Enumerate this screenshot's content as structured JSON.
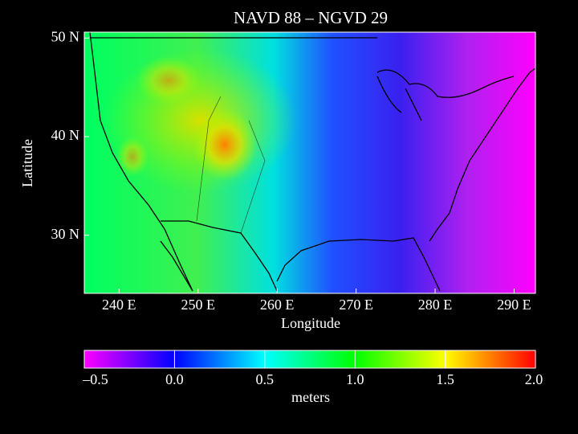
{
  "chart_data": {
    "type": "map",
    "title": "NAVD 88  –  NGVD 29",
    "xlabel": "Longitude",
    "ylabel": "Latitude",
    "xlim": [
      235.6,
      292.7
    ],
    "ylim": [
      24.1,
      50.6
    ],
    "xticks": [
      {
        "value": 240,
        "label": "240 E"
      },
      {
        "value": 250,
        "label": "250 E"
      },
      {
        "value": 260,
        "label": "260 E"
      },
      {
        "value": 270,
        "label": "270 E"
      },
      {
        "value": 280,
        "label": "280 E"
      },
      {
        "value": 290,
        "label": "290 E"
      }
    ],
    "yticks": [
      {
        "value": 30,
        "label": "30 N"
      },
      {
        "value": 40,
        "label": "40 N"
      },
      {
        "value": 50,
        "label": "50 N"
      }
    ],
    "colorbar": {
      "label": "meters",
      "lim": [
        -0.5,
        2.0
      ],
      "colors": [
        "#ff00ff",
        "#0000ff",
        "#00ffff",
        "#00ff00",
        "#ffff00",
        "#ff0000"
      ],
      "ticks": [
        {
          "value": -0.5,
          "label": "–0.5"
        },
        {
          "value": 0,
          "label": "0.0"
        },
        0.5,
        {
          "value": 1,
          "label": "1.0"
        },
        1.5,
        {
          "value": 2,
          "label": "2.0"
        }
      ]
    }
  }
}
